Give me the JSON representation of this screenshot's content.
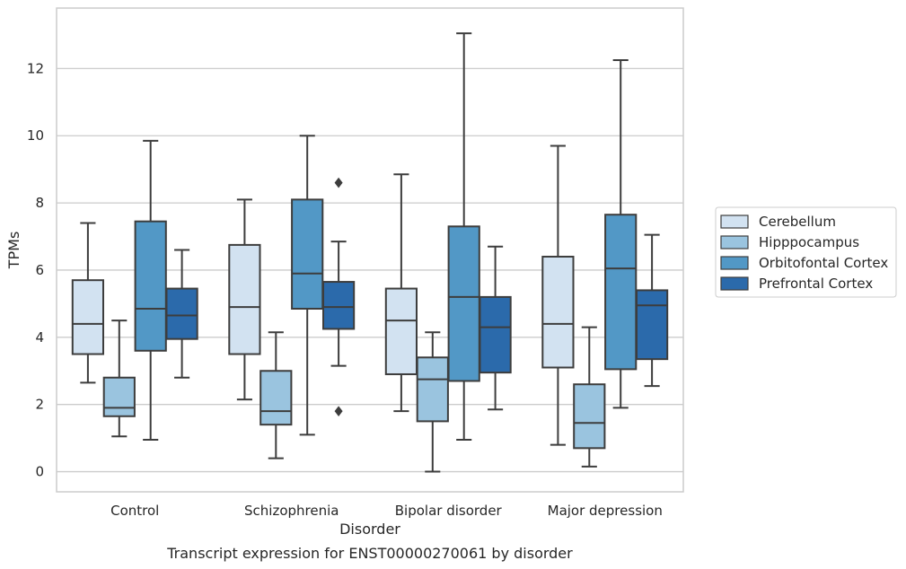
{
  "chart_data": {
    "type": "box",
    "caption": "Transcript expression for ENST00000270061 by disorder",
    "xlabel": "Disorder",
    "ylabel": "TPMs",
    "ylim": [
      -0.6,
      13.8
    ],
    "yticks": [
      0,
      2,
      4,
      6,
      8,
      10,
      12
    ],
    "grid": "horizontal",
    "legend_position": "right",
    "categories": [
      "Control",
      "Schizophrenia",
      "Bipolar disorder",
      "Major depression"
    ],
    "series": [
      {
        "name": "Cerebellum",
        "color": "#d2e2f1",
        "boxes": [
          {
            "whisker_low": 2.65,
            "q1": 3.5,
            "median": 4.4,
            "q3": 5.7,
            "whisker_high": 7.4,
            "outliers": []
          },
          {
            "whisker_low": 2.15,
            "q1": 3.5,
            "median": 4.9,
            "q3": 6.75,
            "whisker_high": 8.1,
            "outliers": []
          },
          {
            "whisker_low": 1.8,
            "q1": 2.9,
            "median": 4.5,
            "q3": 5.45,
            "whisker_high": 8.85,
            "outliers": []
          },
          {
            "whisker_low": 0.8,
            "q1": 3.1,
            "median": 4.4,
            "q3": 6.4,
            "whisker_high": 9.7,
            "outliers": []
          }
        ]
      },
      {
        "name": "Hipppocampus",
        "color": "#9ac4df",
        "boxes": [
          {
            "whisker_low": 1.05,
            "q1": 1.65,
            "median": 1.9,
            "q3": 2.8,
            "whisker_high": 4.5,
            "outliers": []
          },
          {
            "whisker_low": 0.4,
            "q1": 1.4,
            "median": 1.8,
            "q3": 3.0,
            "whisker_high": 4.15,
            "outliers": []
          },
          {
            "whisker_low": 0.0,
            "q1": 1.5,
            "median": 2.75,
            "q3": 3.4,
            "whisker_high": 4.15,
            "outliers": []
          },
          {
            "whisker_low": 0.15,
            "q1": 0.7,
            "median": 1.45,
            "q3": 2.6,
            "whisker_high": 4.3,
            "outliers": []
          }
        ]
      },
      {
        "name": "Orbitofontal Cortex",
        "color": "#5298c6",
        "boxes": [
          {
            "whisker_low": 0.95,
            "q1": 3.6,
            "median": 4.85,
            "q3": 7.45,
            "whisker_high": 9.85,
            "outliers": []
          },
          {
            "whisker_low": 1.1,
            "q1": 4.85,
            "median": 5.9,
            "q3": 8.1,
            "whisker_high": 10.0,
            "outliers": []
          },
          {
            "whisker_low": 0.95,
            "q1": 2.7,
            "median": 5.2,
            "q3": 7.3,
            "whisker_high": 13.05,
            "outliers": []
          },
          {
            "whisker_low": 1.9,
            "q1": 3.05,
            "median": 6.05,
            "q3": 7.65,
            "whisker_high": 12.25,
            "outliers": []
          }
        ]
      },
      {
        "name": "Prefrontal Cortex",
        "color": "#2b6aab",
        "boxes": [
          {
            "whisker_low": 2.8,
            "q1": 3.95,
            "median": 4.65,
            "q3": 5.45,
            "whisker_high": 6.6,
            "outliers": []
          },
          {
            "whisker_low": 3.15,
            "q1": 4.25,
            "median": 4.9,
            "q3": 5.65,
            "whisker_high": 6.85,
            "outliers": [
              8.6,
              1.8
            ]
          },
          {
            "whisker_low": 1.85,
            "q1": 2.95,
            "median": 4.3,
            "q3": 5.2,
            "whisker_high": 6.7,
            "outliers": []
          },
          {
            "whisker_low": 2.55,
            "q1": 3.35,
            "median": 4.95,
            "q3": 5.4,
            "whisker_high": 7.05,
            "outliers": []
          }
        ]
      }
    ]
  }
}
